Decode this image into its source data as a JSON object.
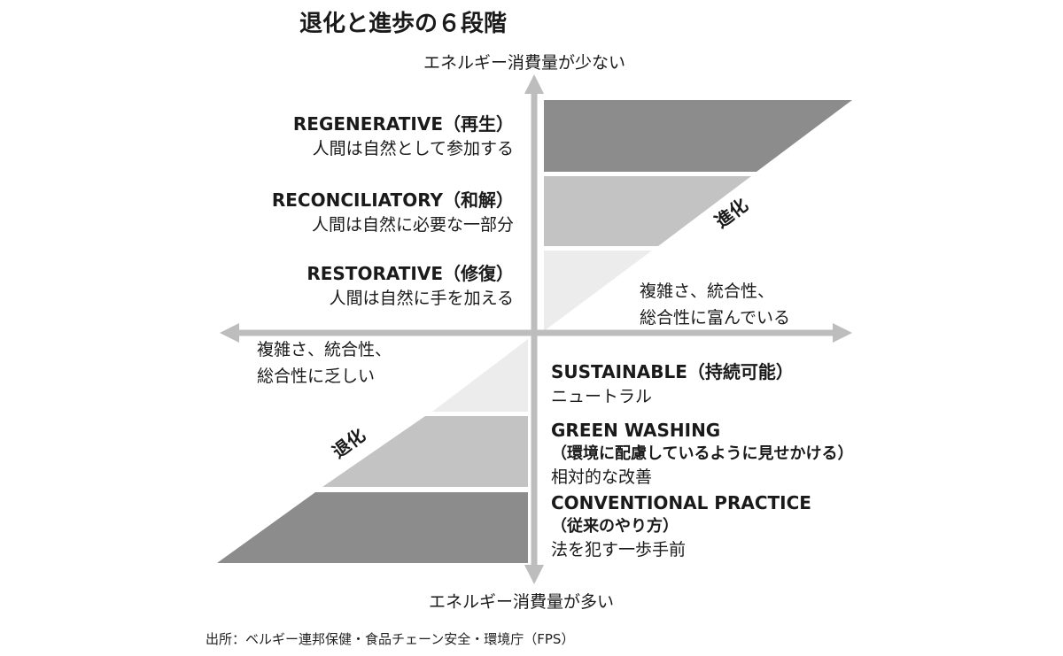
{
  "title": "退化と進歩の６段階",
  "axis": {
    "top_label": "エネルギー消費量が少ない",
    "bottom_label": "エネルギー消費量が多い",
    "left_note": [
      "複雑さ、統合性、",
      "総合性に乏しい"
    ],
    "right_note": [
      "複雑さ、統合性、",
      "総合性に富んでいる"
    ]
  },
  "diagonal_labels": {
    "up": "進化",
    "down": "退化"
  },
  "stages_upper": [
    {
      "name": "REGENERATIVE（再生）",
      "desc": "人間は自然として参加する",
      "color": "#8c8c8c"
    },
    {
      "name": "RECONCILIATORY（和解）",
      "desc": "人間は自然に必要な一部分",
      "color": "#c3c3c3"
    },
    {
      "name": "RESTORATIVE（修復）",
      "desc": "人間は自然に手を加える",
      "color": "#ececec"
    }
  ],
  "stages_lower": [
    {
      "name": "SUSTAINABLE（持続可能）",
      "desc": "ニュートラル",
      "color": "#ececec"
    },
    {
      "name": "GREEN WASHING",
      "name2": "（環境に配慮しているように見せかける）",
      "desc": "相対的な改善",
      "color": "#c3c3c3"
    },
    {
      "name": "CONVENTIONAL PRACTICE",
      "name2": "（従来のやり方）",
      "desc": "法を犯す一歩手前",
      "color": "#8c8c8c"
    }
  ],
  "colors": {
    "axis": "#bdbdbd",
    "text": "#1a1a1a"
  },
  "source": "出所：ベルギー連邦保健・食品チェーン安全・環境庁（FPS）"
}
